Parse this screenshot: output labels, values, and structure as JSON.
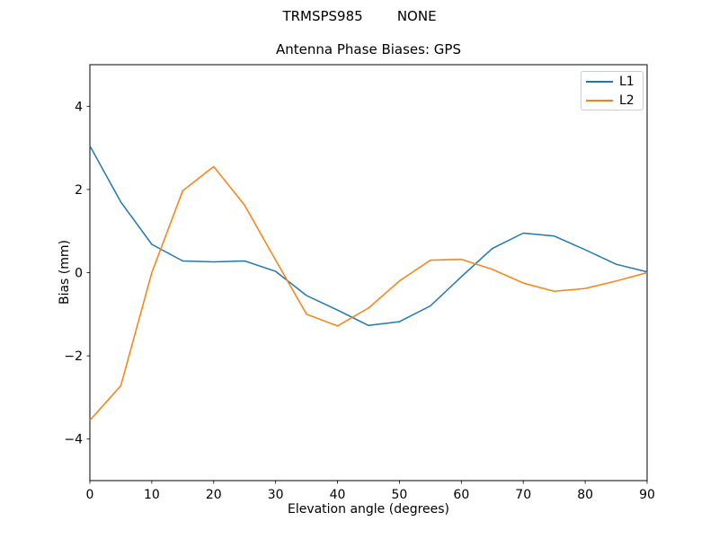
{
  "figure": {
    "suptitle": "TRMSPS985        NONE"
  },
  "chart_data": {
    "type": "line",
    "title": "Antenna Phase Biases: GPS",
    "xlabel": "Elevation angle (degrees)",
    "ylabel": "Bias (mm)",
    "xlim": [
      0,
      90
    ],
    "ylim": [
      -5,
      5
    ],
    "x_ticks": [
      0,
      10,
      20,
      30,
      40,
      50,
      60,
      70,
      80,
      90
    ],
    "y_ticks": [
      -4,
      -2,
      0,
      2,
      4
    ],
    "grid": false,
    "legend_position": "upper right",
    "x": [
      0,
      5,
      10,
      15,
      20,
      25,
      30,
      35,
      40,
      45,
      50,
      55,
      60,
      65,
      70,
      75,
      80,
      85,
      90
    ],
    "series": [
      {
        "name": "L1",
        "color": "#1f77b4",
        "values": [
          3.05,
          1.7,
          0.68,
          0.28,
          0.26,
          0.28,
          0.03,
          -0.55,
          -0.9,
          -1.27,
          -1.18,
          -0.8,
          -0.1,
          0.58,
          0.95,
          0.88,
          0.55,
          0.2,
          0.02
        ]
      },
      {
        "name": "L2",
        "color": "#ff7f0e",
        "values": [
          -3.55,
          -2.72,
          0.0,
          1.97,
          2.55,
          1.62,
          0.3,
          -1.0,
          -1.28,
          -0.85,
          -0.2,
          0.3,
          0.32,
          0.08,
          -0.25,
          -0.45,
          -0.38,
          -0.2,
          0.0
        ]
      }
    ]
  }
}
